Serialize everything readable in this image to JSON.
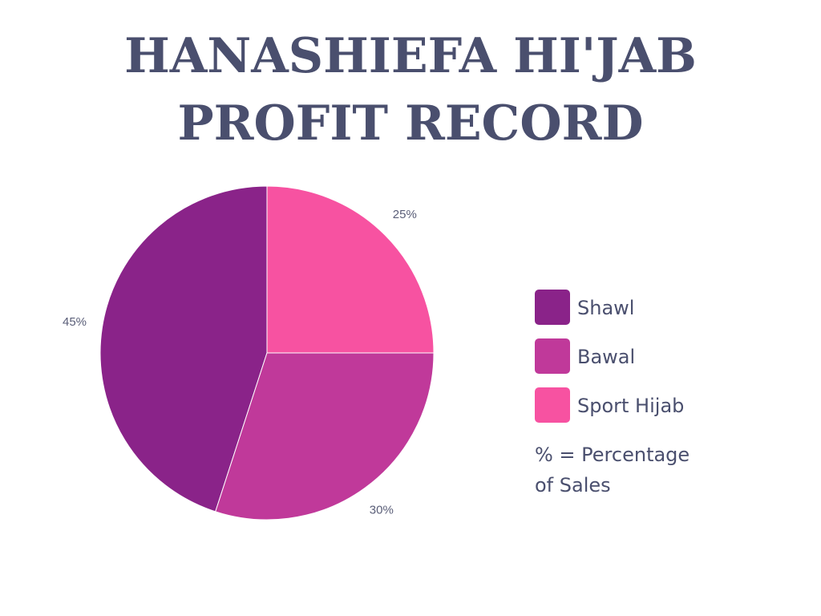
{
  "title": {
    "line1": "HANASHIEFA HI'JAB",
    "line2": "PROFIT RECORD"
  },
  "chart_data": {
    "type": "pie",
    "title": "HANASHIEFA HI'JAB PROFIT RECORD",
    "categories": [
      "Shawl",
      "Bawal",
      "Sport Hijab"
    ],
    "values": [
      45,
      30,
      25
    ],
    "labels": [
      "45%",
      "30%",
      "25%"
    ],
    "colors": [
      "#8a2389",
      "#c0399a",
      "#f752a1"
    ],
    "legend_position": "right",
    "start_angle": "top",
    "direction": "counterclockwise",
    "note": "% = Percentage of Sales"
  },
  "legend": {
    "items": [
      {
        "label": "Shawl",
        "color": "#8a2389"
      },
      {
        "label": "Bawal",
        "color": "#c0399a"
      },
      {
        "label": "Sport Hijab",
        "color": "#f752a1"
      }
    ]
  },
  "note": {
    "line1": "% = Percentage",
    "line2": "of Sales"
  }
}
